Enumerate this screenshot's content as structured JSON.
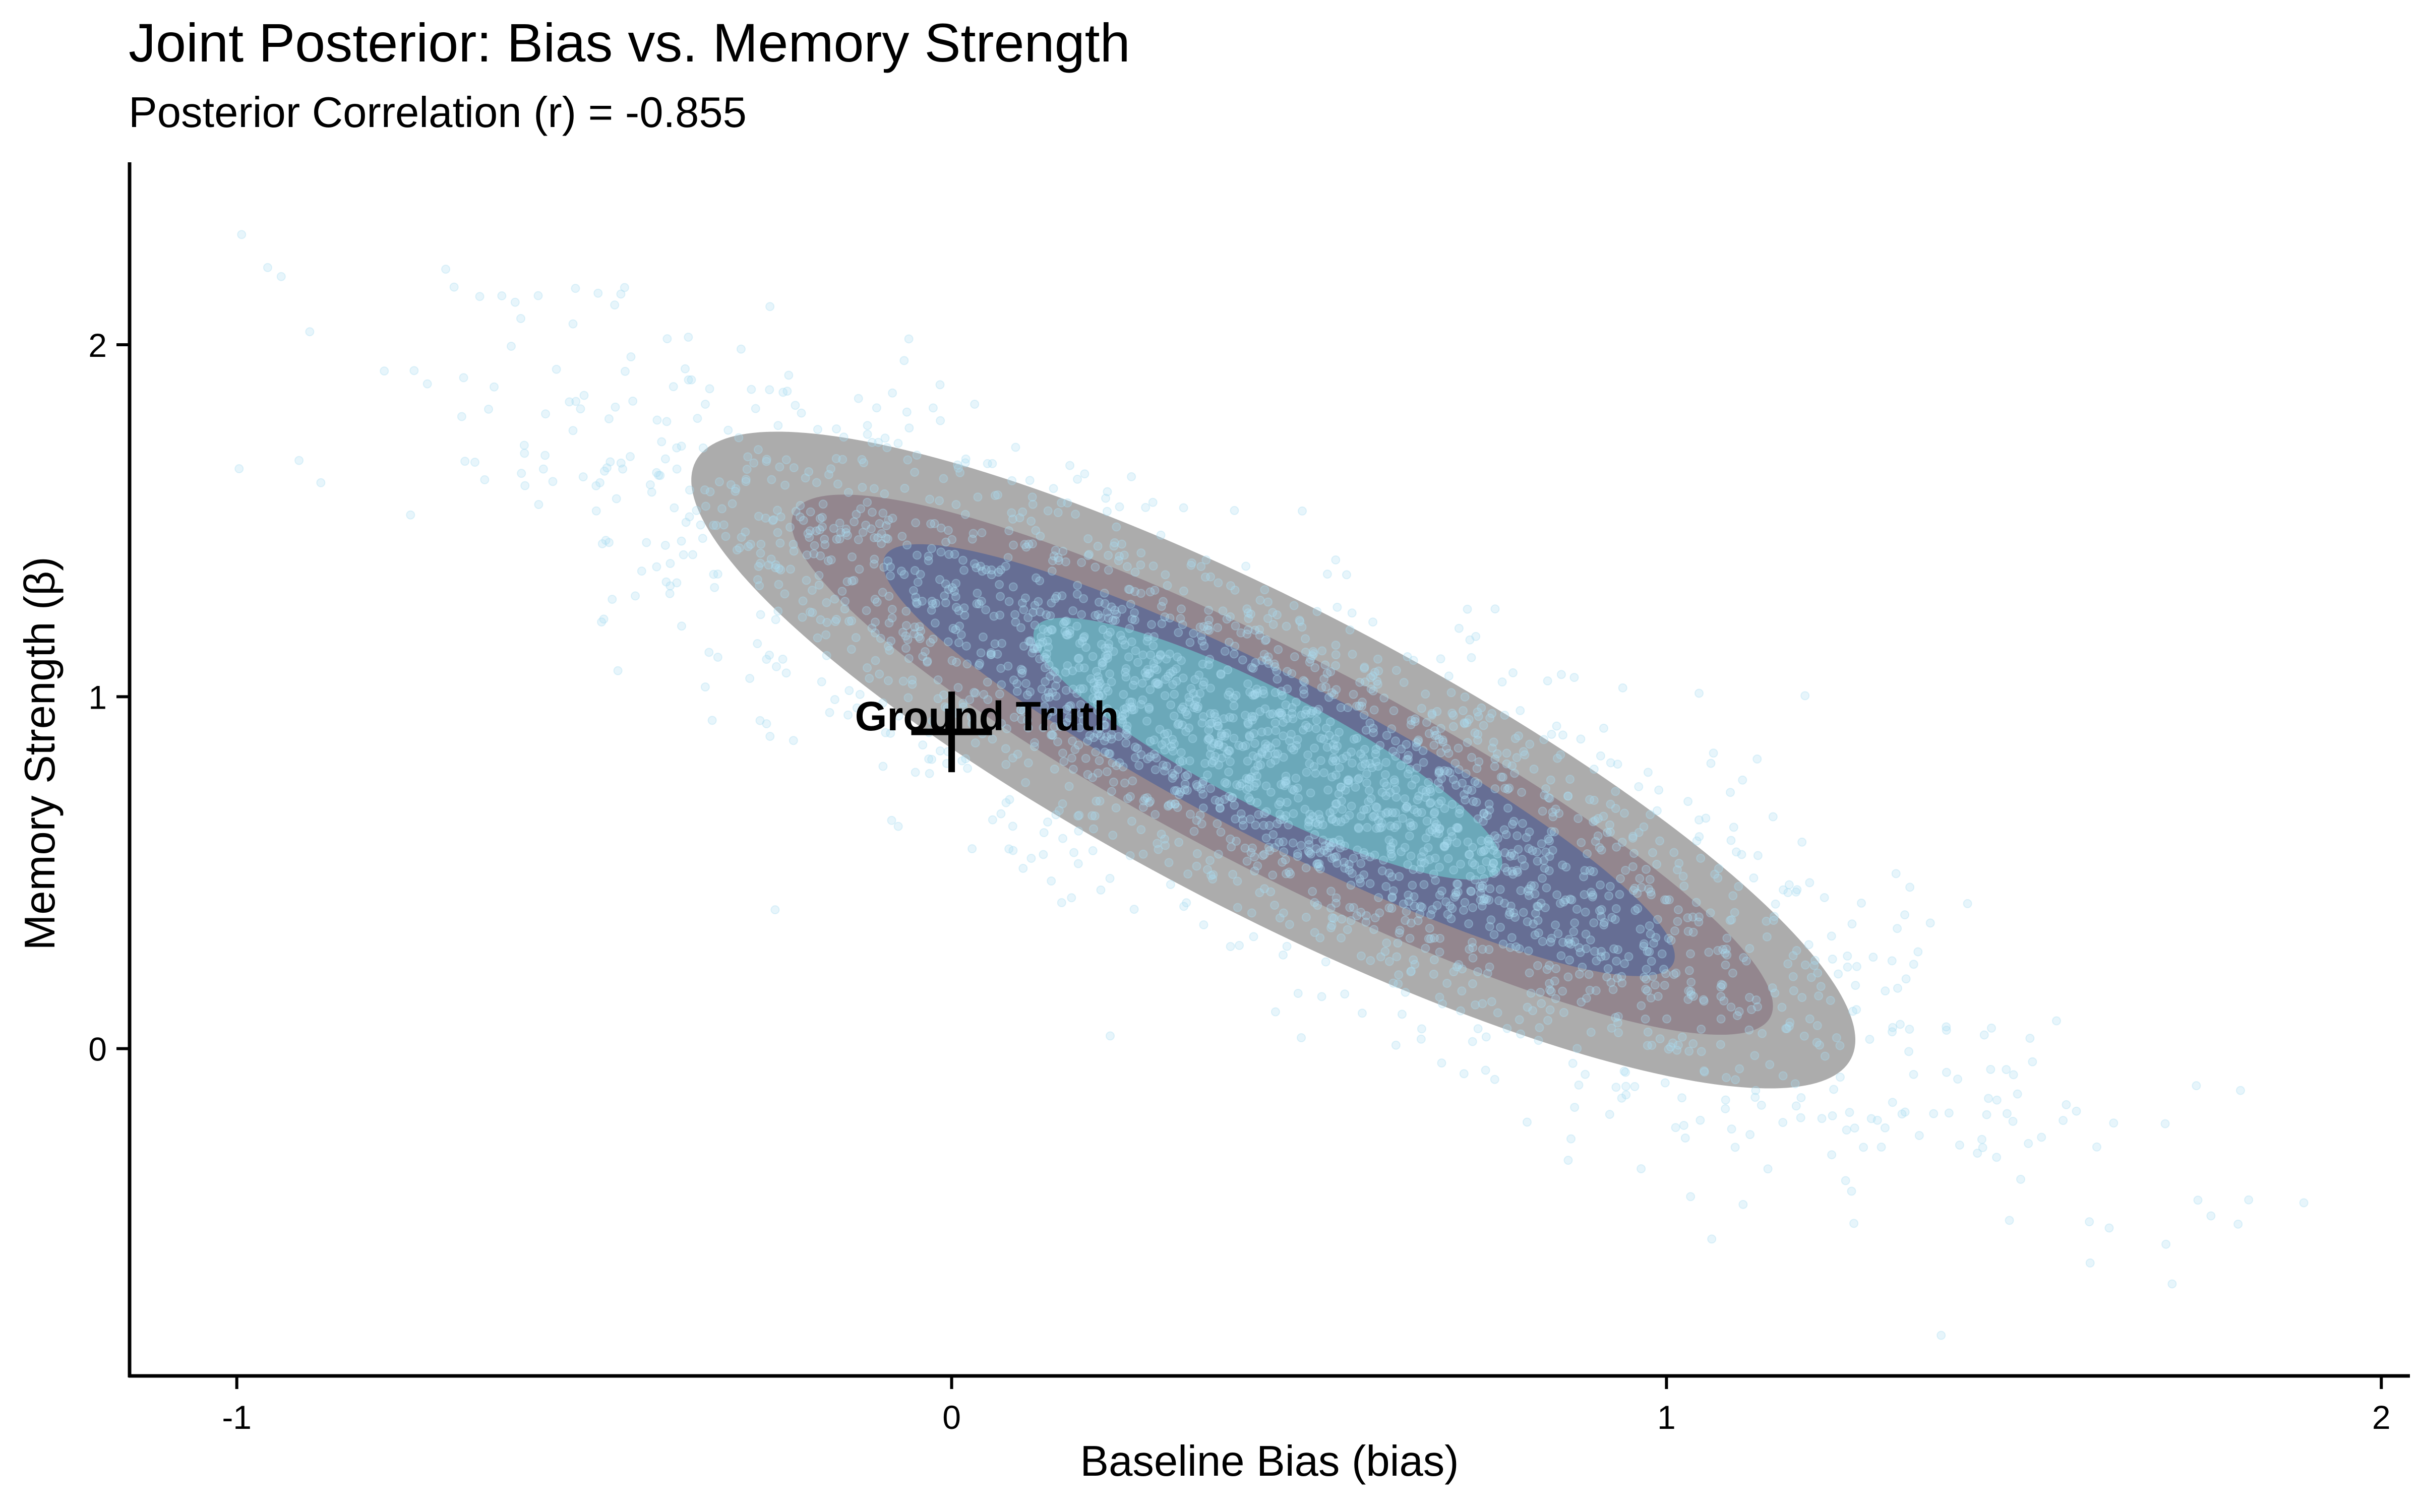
{
  "chart_data": {
    "type": "scatter",
    "title": "Joint Posterior: Bias vs. Memory Strength",
    "subtitle": "Posterior Correlation (r) = -0.855",
    "xlabel": "Baseline Bias (bias)",
    "ylabel": "Memory Strength (β)",
    "xlim": [
      -1.15,
      2.04
    ],
    "ylim": [
      -0.93,
      2.55
    ],
    "xticks": [
      -1,
      0,
      1,
      2
    ],
    "xtick_labels": [
      "-1",
      "0",
      "1",
      "2"
    ],
    "yticks": [
      0,
      1,
      2
    ],
    "ytick_labels": [
      "0",
      "1",
      "2"
    ],
    "grid": false,
    "legend": "none",
    "samples": {
      "distribution": "bivariate normal (posterior draws)",
      "correlation": -0.855,
      "mean_x": 0.45,
      "mean_y": 0.82,
      "sd_x": 0.45,
      "sd_y": 0.5,
      "color": "#a9dcf0"
    },
    "density_contours": [
      {
        "level": "outer",
        "color": "#9e9e9e"
      },
      {
        "level": "middle",
        "color": "#8e7f88"
      },
      {
        "level": "inner",
        "color": "#5e6a95"
      },
      {
        "level": "core",
        "color": "#6dbcc6"
      }
    ],
    "reference_point": {
      "label": "Ground Truth",
      "x": 0.0,
      "y": 0.9,
      "marker": "plus"
    }
  }
}
